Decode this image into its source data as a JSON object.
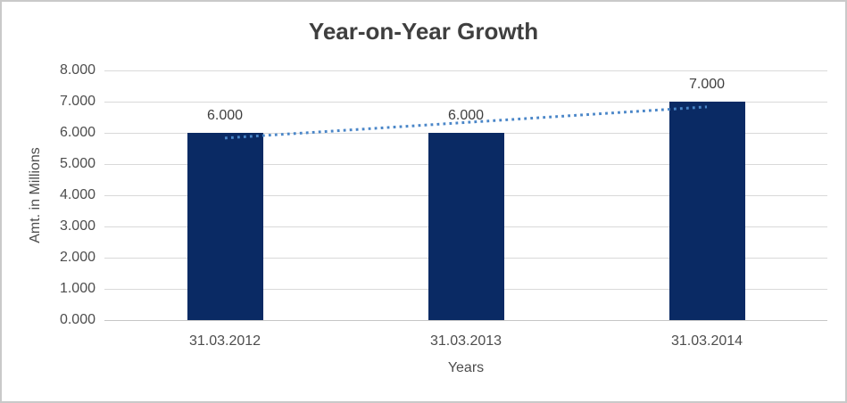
{
  "chart_data": {
    "type": "bar",
    "title": "Year-on-Year Growth",
    "xlabel": "Years",
    "ylabel": "Amt. in Millions",
    "categories": [
      "31.03.2012",
      "31.03.2013",
      "31.03.2014"
    ],
    "values": [
      6.0,
      6.0,
      7.0
    ],
    "data_labels": [
      "6.000",
      "6.000",
      "7.000"
    ],
    "ylim": [
      0,
      8
    ],
    "ytick_step": 1,
    "ytick_labels": [
      "0.000",
      "1.000",
      "2.000",
      "3.000",
      "4.000",
      "5.000",
      "6.000",
      "7.000",
      "8.000"
    ],
    "grid": true,
    "legend": "none",
    "trendline": {
      "type": "linear",
      "style": "dotted",
      "color": "#4a86c8",
      "fit_values_at_ends": [
        5.833,
        6.833
      ]
    },
    "colors": {
      "bar": "#0a2a64",
      "gridline": "#d9d9d9",
      "baseline": "#c6c6c6",
      "title_text": "#3f3f3f",
      "axis_text": "#4d4d4d",
      "frame_border": "#c9c9c9",
      "background": "#ffffff"
    }
  }
}
